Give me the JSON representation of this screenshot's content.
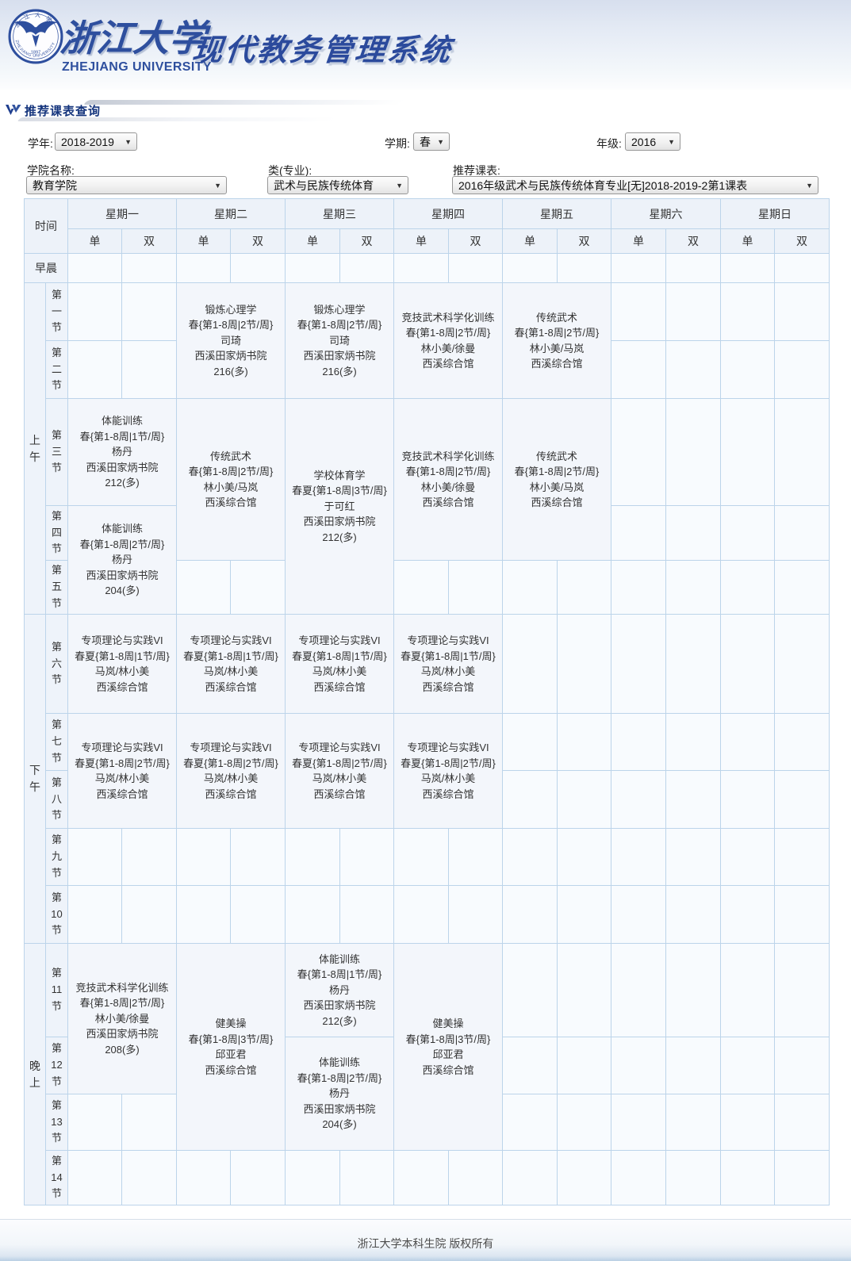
{
  "banner": {
    "university_cn": "浙江大学",
    "university_en": "ZHEJIANG UNIVERSITY",
    "system_title": "现代教务管理系统",
    "seal_ring_top": "浙 江 大 学",
    "seal_ring_bottom": "ZHEJIANG UNIVERSITY",
    "seal_year": "1897"
  },
  "section": {
    "title": "推荐课表查询"
  },
  "filters": {
    "dropdown_arrow": "▼",
    "year_label": "学年:",
    "year_value": "2018-2019",
    "term_label": "学期:",
    "term_value": "春",
    "grade_label": "年级:",
    "grade_value": "2016",
    "college_label": "学院名称:",
    "college_value": "教育学院",
    "major_label": "类(专业):",
    "major_value": "武术与民族传统体育",
    "timetable_label": "推荐课表:",
    "timetable_value": "2016年级武术与民族传统体育专业[无]2018-2019-2第1课表"
  },
  "table": {
    "time_header": "时间",
    "odd": "单",
    "even": "双",
    "days": [
      "星期一",
      "星期二",
      "星期三",
      "星期四",
      "星期五",
      "星期六",
      "星期日"
    ],
    "sections": {
      "morning": "早晨",
      "am": "上午",
      "pm": "下午",
      "evening": "晚上"
    },
    "periods": [
      "第一节",
      "第二节",
      "第三节",
      "第四节",
      "第五节",
      "第六节",
      "第七节",
      "第八节",
      "第九节",
      "第10节",
      "第11节",
      "第12节",
      "第13节",
      "第14节"
    ],
    "courses": {
      "tue_1_2": [
        "锻炼心理学",
        "春{第1-8周|2节/周}",
        "司琦",
        "西溪田家炳书院",
        "216(多)"
      ],
      "wed_1_2": [
        "锻炼心理学",
        "春{第1-8周|2节/周}",
        "司琦",
        "西溪田家炳书院",
        "216(多)"
      ],
      "thu_1_2": [
        "竞技武术科学化训练",
        "春{第1-8周|2节/周}",
        "林小美/徐曼",
        "西溪综合馆"
      ],
      "fri_1_2": [
        "传统武术",
        "春{第1-8周|2节/周}",
        "林小美/马岚",
        "西溪综合馆"
      ],
      "mon_3": [
        "体能训练",
        "春{第1-8周|1节/周}",
        "杨丹",
        "西溪田家炳书院",
        "212(多)"
      ],
      "tue_3_4": [
        "传统武术",
        "春{第1-8周|2节/周}",
        "林小美/马岚",
        "西溪综合馆"
      ],
      "wed_3_5": [
        "学校体育学",
        "春夏{第1-8周|3节/周}",
        "于可红",
        "西溪田家炳书院",
        "212(多)"
      ],
      "thu_3_4": [
        "竞技武术科学化训练",
        "春{第1-8周|2节/周}",
        "林小美/徐曼",
        "西溪综合馆"
      ],
      "fri_3_4": [
        "传统武术",
        "春{第1-8周|2节/周}",
        "林小美/马岚",
        "西溪综合馆"
      ],
      "mon_4_5": [
        "体能训练",
        "春{第1-8周|2节/周}",
        "杨丹",
        "西溪田家炳书院",
        "204(多)"
      ],
      "mon_6": [
        "专项理论与实践VI",
        "春夏{第1-8周|1节/周}",
        "马岚/林小美",
        "西溪综合馆"
      ],
      "tue_6": [
        "专项理论与实践VI",
        "春夏{第1-8周|1节/周}",
        "马岚/林小美",
        "西溪综合馆"
      ],
      "wed_6": [
        "专项理论与实践VI",
        "春夏{第1-8周|1节/周}",
        "马岚/林小美",
        "西溪综合馆"
      ],
      "thu_6": [
        "专项理论与实践VI",
        "春夏{第1-8周|1节/周}",
        "马岚/林小美",
        "西溪综合馆"
      ],
      "mon_7_8": [
        "专项理论与实践VI",
        "春夏{第1-8周|2节/周}",
        "马岚/林小美",
        "西溪综合馆"
      ],
      "tue_7_8": [
        "专项理论与实践VI",
        "春夏{第1-8周|2节/周}",
        "马岚/林小美",
        "西溪综合馆"
      ],
      "wed_7_8": [
        "专项理论与实践VI",
        "春夏{第1-8周|2节/周}",
        "马岚/林小美",
        "西溪综合馆"
      ],
      "thu_7_8": [
        "专项理论与实践VI",
        "春夏{第1-8周|2节/周}",
        "马岚/林小美",
        "西溪综合馆"
      ],
      "mon_11_12": [
        "竞技武术科学化训练",
        "春{第1-8周|2节/周}",
        "林小美/徐曼",
        "西溪田家炳书院",
        "208(多)"
      ],
      "tue_11_13": [
        "健美操",
        "春{第1-8周|3节/周}",
        "邱亚君",
        "西溪综合馆"
      ],
      "wed_11": [
        "体能训练",
        "春{第1-8周|1节/周}",
        "杨丹",
        "西溪田家炳书院",
        "212(多)"
      ],
      "wed_12_13": [
        "体能训练",
        "春{第1-8周|2节/周}",
        "杨丹",
        "西溪田家炳书院",
        "204(多)"
      ],
      "thu_11_13": [
        "健美操",
        "春{第1-8周|3节/周}",
        "邱亚君",
        "西溪综合馆"
      ]
    }
  },
  "footer": {
    "copyright": "浙江大学本科生院 版权所有"
  }
}
